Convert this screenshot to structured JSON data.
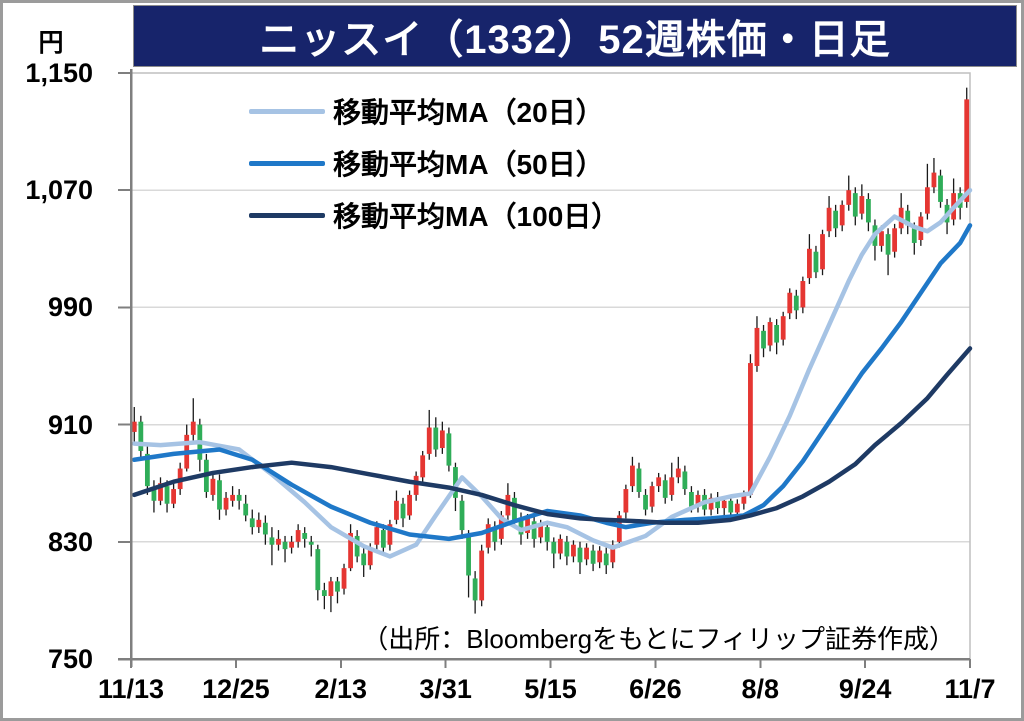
{
  "title": "ニッスイ（1332）52週株価・日足",
  "y_axis_unit": "円",
  "source_note": "（出所：Bloombergをもとにフィリップ証券作成）",
  "legend": {
    "items": [
      {
        "label": "移動平均MA（20日）",
        "color": "#a6c3e4"
      },
      {
        "label": "移動平均MA（50日）",
        "color": "#1f78c8"
      },
      {
        "label": "移動平均MA（100日）",
        "color": "#1e3a64"
      }
    ]
  },
  "colors": {
    "candle_up": "#e53632",
    "candle_down": "#2fad58",
    "wick": "#1a1a1a",
    "grid": "#d9d9d9",
    "axis": "#7f7f7f",
    "plot_border": "#bfbfbf",
    "title_bg": "#17246b",
    "title_text": "#ffffff"
  },
  "chart_data": {
    "type": "candlestick",
    "title": "ニッスイ（1332）52週株価・日足",
    "ylabel": "円",
    "ylim": [
      750,
      1150
    ],
    "grid": true,
    "legend_position": "top-left",
    "y_tick_values": [
      1150,
      1070,
      990,
      910,
      830,
      750
    ],
    "y_tick_labels": [
      "1,150",
      "1,070",
      "990",
      "910",
      "830",
      "750"
    ],
    "x_tick_labels": [
      "11/13",
      "12/25",
      "2/13",
      "3/31",
      "5/15",
      "6/26",
      "8/8",
      "9/24",
      "11/7"
    ],
    "candles_ohlc": [
      [
        905,
        922,
        898,
        912
      ],
      [
        912,
        916,
        886,
        892
      ],
      [
        890,
        895,
        862,
        868
      ],
      [
        866,
        872,
        850,
        858
      ],
      [
        858,
        874,
        855,
        870
      ],
      [
        868,
        872,
        850,
        856
      ],
      [
        856,
        870,
        853,
        866
      ],
      [
        866,
        884,
        862,
        880
      ],
      [
        880,
        910,
        878,
        903
      ],
      [
        903,
        928,
        898,
        912
      ],
      [
        910,
        914,
        878,
        886
      ],
      [
        886,
        890,
        860,
        864
      ],
      [
        862,
        877,
        858,
        873
      ],
      [
        872,
        876,
        845,
        852
      ],
      [
        852,
        864,
        848,
        860
      ],
      [
        858,
        868,
        854,
        862
      ],
      [
        862,
        866,
        852,
        858
      ],
      [
        856,
        862,
        844,
        848
      ],
      [
        846,
        852,
        835,
        840
      ],
      [
        840,
        850,
        836,
        845
      ],
      [
        843,
        848,
        828,
        835
      ],
      [
        833,
        840,
        814,
        828
      ],
      [
        828,
        838,
        824,
        832
      ],
      [
        830,
        834,
        816,
        825
      ],
      [
        826,
        834,
        822,
        830
      ],
      [
        830,
        842,
        826,
        838
      ],
      [
        836,
        840,
        826,
        832
      ],
      [
        830,
        834,
        820,
        828
      ],
      [
        825,
        828,
        790,
        797
      ],
      [
        797,
        802,
        784,
        793
      ],
      [
        793,
        806,
        782,
        803
      ],
      [
        803,
        806,
        788,
        796
      ],
      [
        798,
        815,
        794,
        812
      ],
      [
        812,
        842,
        810,
        836
      ],
      [
        834,
        838,
        816,
        820
      ],
      [
        822,
        826,
        806,
        814
      ],
      [
        814,
        829,
        811,
        826
      ],
      [
        828,
        844,
        824,
        840
      ],
      [
        838,
        842,
        822,
        826
      ],
      [
        828,
        845,
        824,
        842
      ],
      [
        845,
        865,
        842,
        858
      ],
      [
        856,
        860,
        840,
        846
      ],
      [
        848,
        865,
        845,
        862
      ],
      [
        862,
        878,
        858,
        875
      ],
      [
        874,
        892,
        870,
        889
      ],
      [
        890,
        920,
        886,
        908
      ],
      [
        908,
        915,
        888,
        893
      ],
      [
        894,
        912,
        890,
        906
      ],
      [
        904,
        908,
        878,
        882
      ],
      [
        881,
        884,
        851,
        860
      ],
      [
        858,
        862,
        832,
        838
      ],
      [
        835,
        838,
        792,
        807
      ],
      [
        805,
        810,
        781,
        790
      ],
      [
        790,
        828,
        786,
        824
      ],
      [
        826,
        846,
        822,
        842
      ],
      [
        840,
        844,
        824,
        830
      ],
      [
        832,
        851,
        828,
        848
      ],
      [
        848,
        870,
        844,
        862
      ],
      [
        860,
        864,
        840,
        845
      ],
      [
        846,
        850,
        828,
        835
      ],
      [
        836,
        849,
        832,
        846
      ],
      [
        844,
        848,
        826,
        832
      ],
      [
        833,
        845,
        829,
        842
      ],
      [
        840,
        844,
        824,
        830
      ],
      [
        830,
        833,
        812,
        822
      ],
      [
        822,
        835,
        818,
        832
      ],
      [
        830,
        834,
        814,
        820
      ],
      [
        820,
        831,
        816,
        828
      ],
      [
        826,
        830,
        808,
        816
      ],
      [
        818,
        829,
        814,
        826
      ],
      [
        824,
        828,
        810,
        815
      ],
      [
        816,
        827,
        812,
        824
      ],
      [
        822,
        826,
        808,
        814
      ],
      [
        816,
        831,
        812,
        828
      ],
      [
        830,
        851,
        826,
        848
      ],
      [
        850,
        869,
        846,
        866
      ],
      [
        868,
        888,
        864,
        882
      ],
      [
        880,
        884,
        860,
        864
      ],
      [
        862,
        866,
        848,
        852
      ],
      [
        854,
        871,
        850,
        868
      ],
      [
        868,
        877,
        864,
        874
      ],
      [
        872,
        876,
        856,
        860
      ],
      [
        862,
        884,
        858,
        874
      ],
      [
        874,
        888,
        870,
        880
      ],
      [
        878,
        882,
        862,
        866
      ],
      [
        864,
        868,
        850,
        854
      ],
      [
        854,
        865,
        850,
        862
      ],
      [
        862,
        866,
        848,
        852
      ],
      [
        852,
        863,
        848,
        860
      ],
      [
        860,
        864,
        849,
        853
      ],
      [
        853,
        861,
        848,
        858
      ],
      [
        858,
        862,
        846,
        850
      ],
      [
        850,
        859,
        846,
        856
      ],
      [
        856,
        865,
        852,
        862
      ],
      [
        862,
        958,
        860,
        952
      ],
      [
        950,
        984,
        946,
        976
      ],
      [
        974,
        978,
        956,
        962
      ],
      [
        964,
        983,
        960,
        980
      ],
      [
        978,
        982,
        958,
        966
      ],
      [
        968,
        987,
        964,
        984
      ],
      [
        986,
        1003,
        982,
        1000
      ],
      [
        998,
        1002,
        982,
        988
      ],
      [
        990,
        1011,
        986,
        1008
      ],
      [
        1010,
        1040,
        1006,
        1030
      ],
      [
        1028,
        1032,
        1010,
        1014
      ],
      [
        1016,
        1043,
        1012,
        1040
      ],
      [
        1042,
        1066,
        1038,
        1058
      ],
      [
        1056,
        1060,
        1038,
        1044
      ],
      [
        1046,
        1063,
        1042,
        1060
      ],
      [
        1060,
        1080,
        1056,
        1070
      ],
      [
        1068,
        1072,
        1046,
        1052
      ],
      [
        1054,
        1074,
        1050,
        1066
      ],
      [
        1064,
        1068,
        1042,
        1048
      ],
      [
        1046,
        1050,
        1022,
        1032
      ],
      [
        1032,
        1046,
        1028,
        1042
      ],
      [
        1040,
        1044,
        1012,
        1026
      ],
      [
        1028,
        1047,
        1024,
        1044
      ],
      [
        1044,
        1068,
        1040,
        1058
      ],
      [
        1056,
        1060,
        1040,
        1046
      ],
      [
        1044,
        1048,
        1026,
        1034
      ],
      [
        1036,
        1055,
        1032,
        1052
      ],
      [
        1054,
        1088,
        1050,
        1072
      ],
      [
        1072,
        1092,
        1068,
        1082
      ],
      [
        1080,
        1084,
        1058,
        1062
      ],
      [
        1060,
        1064,
        1040,
        1048
      ],
      [
        1050,
        1078,
        1046,
        1068
      ],
      [
        1068,
        1072,
        1050,
        1058
      ],
      [
        1062,
        1140,
        1058,
        1132
      ]
    ],
    "series": [
      {
        "name": "移動平均MA（20日）",
        "color": "#a6c3e4",
        "points": [
          [
            0,
            897
          ],
          [
            4,
            896
          ],
          [
            10,
            898
          ],
          [
            16,
            893
          ],
          [
            21,
            876
          ],
          [
            26,
            857
          ],
          [
            30,
            840
          ],
          [
            35,
            827
          ],
          [
            39,
            820
          ],
          [
            43,
            828
          ],
          [
            46,
            848
          ],
          [
            50,
            874
          ],
          [
            53,
            861
          ],
          [
            56,
            846
          ],
          [
            59,
            838
          ],
          [
            63,
            843
          ],
          [
            66,
            840
          ],
          [
            70,
            831
          ],
          [
            73,
            826
          ],
          [
            78,
            834
          ],
          [
            82,
            847
          ],
          [
            87,
            857
          ],
          [
            91,
            861
          ],
          [
            94,
            863
          ],
          [
            97,
            888
          ],
          [
            100,
            916
          ],
          [
            103,
            948
          ],
          [
            106,
            978
          ],
          [
            109,
            1008
          ],
          [
            111,
            1026
          ],
          [
            113,
            1040
          ],
          [
            116,
            1052
          ],
          [
            119,
            1045
          ],
          [
            121,
            1042
          ],
          [
            123,
            1048
          ],
          [
            125,
            1058
          ],
          [
            127.5,
            1070
          ]
        ]
      },
      {
        "name": "移動平均MA（50日）",
        "color": "#1f78c8",
        "points": [
          [
            0,
            886
          ],
          [
            6,
            890
          ],
          [
            13,
            893
          ],
          [
            18,
            886
          ],
          [
            24,
            869
          ],
          [
            30,
            854
          ],
          [
            36,
            843
          ],
          [
            42,
            835
          ],
          [
            48,
            832
          ],
          [
            53,
            836
          ],
          [
            58,
            844
          ],
          [
            63,
            851
          ],
          [
            68,
            848
          ],
          [
            72,
            843
          ],
          [
            75,
            840
          ],
          [
            79,
            843
          ],
          [
            84,
            845
          ],
          [
            88,
            846
          ],
          [
            93,
            848
          ],
          [
            96,
            855
          ],
          [
            99,
            868
          ],
          [
            102,
            885
          ],
          [
            105,
            905
          ],
          [
            108,
            925
          ],
          [
            111,
            945
          ],
          [
            114,
            962
          ],
          [
            117,
            980
          ],
          [
            120,
            1000
          ],
          [
            123,
            1020
          ],
          [
            126,
            1034
          ],
          [
            127.5,
            1046
          ]
        ]
      },
      {
        "name": "移動平均MA（100日）",
        "color": "#1e3a64",
        "points": [
          [
            0,
            862
          ],
          [
            6,
            871
          ],
          [
            12,
            877
          ],
          [
            18,
            881
          ],
          [
            24,
            884
          ],
          [
            30,
            881
          ],
          [
            36,
            876
          ],
          [
            42,
            871
          ],
          [
            48,
            867
          ],
          [
            53,
            862
          ],
          [
            58,
            855
          ],
          [
            63,
            849
          ],
          [
            68,
            846
          ],
          [
            72,
            845
          ],
          [
            77,
            844
          ],
          [
            81,
            843
          ],
          [
            86,
            843
          ],
          [
            91,
            845
          ],
          [
            94,
            848
          ],
          [
            98,
            853
          ],
          [
            102,
            861
          ],
          [
            106,
            871
          ],
          [
            110,
            883
          ],
          [
            113,
            896
          ],
          [
            117,
            911
          ],
          [
            121,
            928
          ],
          [
            124,
            944
          ],
          [
            127.5,
            962
          ]
        ]
      }
    ]
  }
}
